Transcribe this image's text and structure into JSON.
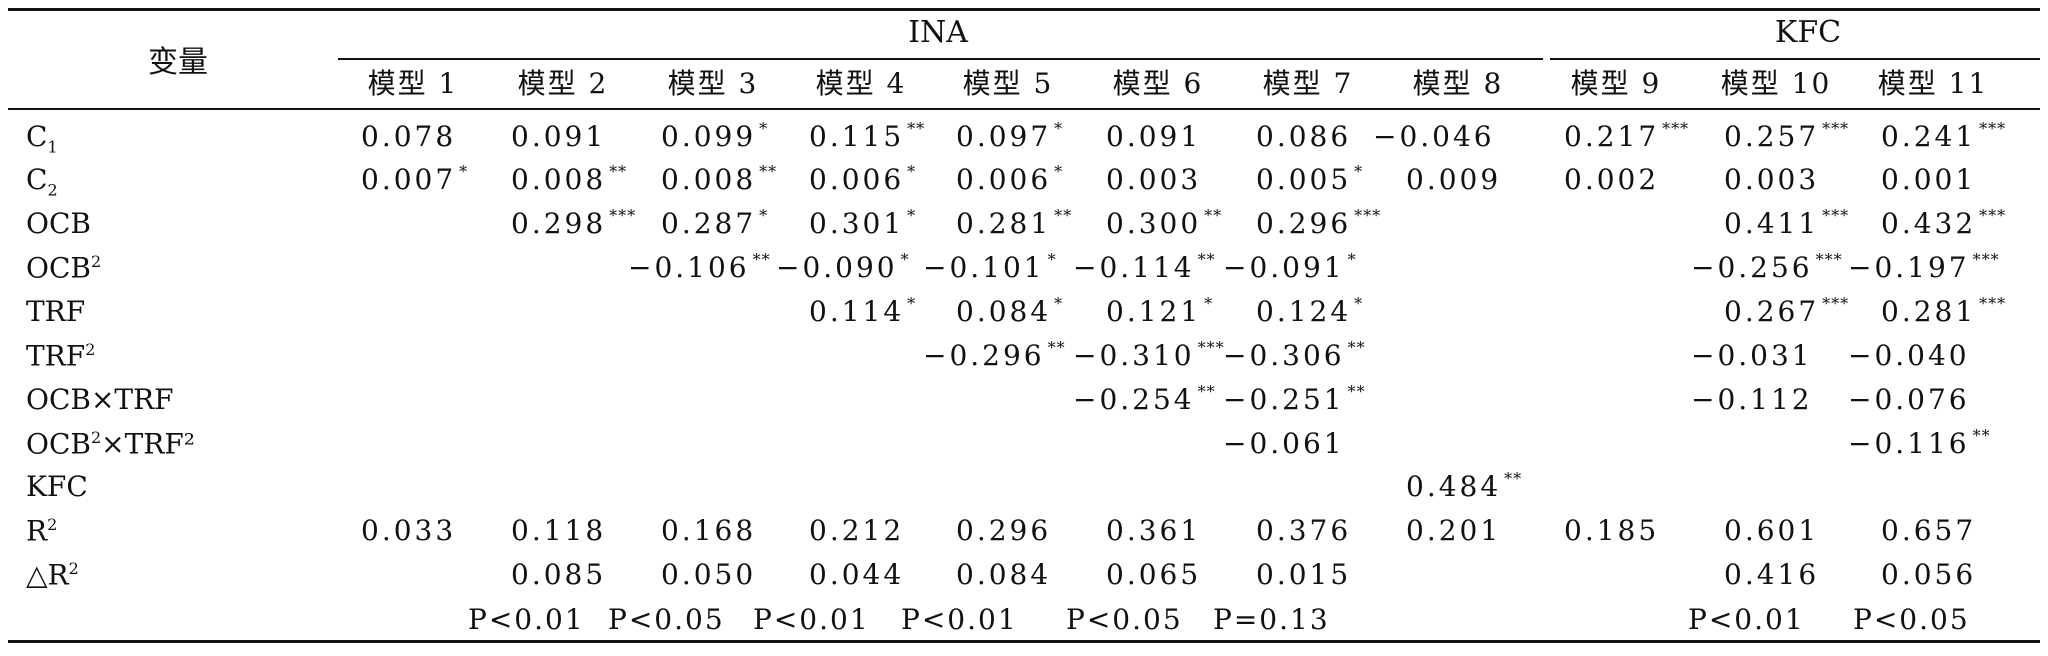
{
  "header": {
    "variable_label": "变量",
    "group_ina": "INA",
    "group_kfc": "KFC",
    "models": [
      "模型 1",
      "模型 2",
      "模型 3",
      "模型 4",
      "模型 5",
      "模型 6",
      "模型 7",
      "模型 8",
      "模型 9",
      "模型 10",
      "模型 11"
    ]
  },
  "rows": [
    {
      "label_base": "C",
      "label_sub": "1",
      "label_sup": "",
      "label_rest": "",
      "cells": [
        [
          "0.078",
          ""
        ],
        [
          "0.091",
          ""
        ],
        [
          "0.099",
          "*"
        ],
        [
          "0.115",
          "**"
        ],
        [
          "0.097",
          "*"
        ],
        [
          "0.091",
          ""
        ],
        [
          "0.086",
          ""
        ],
        [
          "−0.046",
          ""
        ],
        [
          "0.217",
          "***"
        ],
        [
          "0.257",
          "***"
        ],
        [
          "0.241",
          "***"
        ]
      ]
    },
    {
      "label_base": "C",
      "label_sub": "2",
      "label_sup": "",
      "label_rest": "",
      "cells": [
        [
          "0.007",
          "*"
        ],
        [
          "0.008",
          "**"
        ],
        [
          "0.008",
          "**"
        ],
        [
          "0.006",
          "*"
        ],
        [
          "0.006",
          "*"
        ],
        [
          "0.003",
          ""
        ],
        [
          "0.005",
          "*"
        ],
        [
          "0.009",
          ""
        ],
        [
          "0.002",
          ""
        ],
        [
          "0.003",
          ""
        ],
        [
          "0.001",
          ""
        ]
      ]
    },
    {
      "label_base": "OCB",
      "label_sub": "",
      "label_sup": "",
      "label_rest": "",
      "cells": [
        [
          "",
          ""
        ],
        [
          "0.298",
          "***"
        ],
        [
          "0.287",
          "*"
        ],
        [
          "0.301",
          "*"
        ],
        [
          "0.281",
          "**"
        ],
        [
          "0.300",
          "**"
        ],
        [
          "0.296",
          "***"
        ],
        [
          "",
          ""
        ],
        [
          "",
          ""
        ],
        [
          "0.411",
          "***"
        ],
        [
          "0.432",
          "***"
        ]
      ]
    },
    {
      "label_base": "OCB",
      "label_sub": "",
      "label_sup": "2",
      "label_rest": "",
      "cells": [
        [
          "",
          ""
        ],
        [
          "",
          ""
        ],
        [
          "−0.106",
          "**"
        ],
        [
          "−0.090",
          "*"
        ],
        [
          "−0.101",
          "*"
        ],
        [
          "−0.114",
          "**"
        ],
        [
          "−0.091",
          "*"
        ],
        [
          "",
          ""
        ],
        [
          "",
          ""
        ],
        [
          "−0.256",
          "***"
        ],
        [
          "−0.197",
          "***"
        ]
      ]
    },
    {
      "label_base": "TRF",
      "label_sub": "",
      "label_sup": "",
      "label_rest": "",
      "cells": [
        [
          "",
          ""
        ],
        [
          "",
          ""
        ],
        [
          "",
          ""
        ],
        [
          "0.114",
          "*"
        ],
        [
          "0.084",
          "*"
        ],
        [
          "0.121",
          "*"
        ],
        [
          "0.124",
          "*"
        ],
        [
          "",
          ""
        ],
        [
          "",
          ""
        ],
        [
          "0.267",
          "***"
        ],
        [
          "0.281",
          "***"
        ]
      ]
    },
    {
      "label_base": "TRF",
      "label_sub": "",
      "label_sup": "2",
      "label_rest": "",
      "cells": [
        [
          "",
          ""
        ],
        [
          "",
          ""
        ],
        [
          "",
          ""
        ],
        [
          "",
          ""
        ],
        [
          "−0.296",
          "**"
        ],
        [
          "−0.310",
          "***"
        ],
        [
          "−0.306",
          "**"
        ],
        [
          "",
          ""
        ],
        [
          "",
          ""
        ],
        [
          "−0.031",
          ""
        ],
        [
          "−0.040",
          ""
        ]
      ]
    },
    {
      "label_base": "OCB×TRF",
      "label_sub": "",
      "label_sup": "",
      "label_rest": "",
      "cells": [
        [
          "",
          ""
        ],
        [
          "",
          ""
        ],
        [
          "",
          ""
        ],
        [
          "",
          ""
        ],
        [
          "",
          ""
        ],
        [
          "−0.254",
          "**"
        ],
        [
          "−0.251",
          "**"
        ],
        [
          "",
          ""
        ],
        [
          "",
          ""
        ],
        [
          "−0.112",
          ""
        ],
        [
          "−0.076",
          ""
        ]
      ]
    },
    {
      "label_base": "OCB",
      "label_sub": "",
      "label_sup": "2",
      "label_rest": "×TRF²",
      "cells": [
        [
          "",
          ""
        ],
        [
          "",
          ""
        ],
        [
          "",
          ""
        ],
        [
          "",
          ""
        ],
        [
          "",
          ""
        ],
        [
          "",
          ""
        ],
        [
          "−0.061",
          ""
        ],
        [
          "",
          ""
        ],
        [
          "",
          ""
        ],
        [
          "",
          ""
        ],
        [
          "−0.116",
          "**"
        ]
      ]
    },
    {
      "label_base": "KFC",
      "label_sub": "",
      "label_sup": "",
      "label_rest": "",
      "cells": [
        [
          "",
          ""
        ],
        [
          "",
          ""
        ],
        [
          "",
          ""
        ],
        [
          "",
          ""
        ],
        [
          "",
          ""
        ],
        [
          "",
          ""
        ],
        [
          "",
          ""
        ],
        [
          "0.484",
          "**"
        ],
        [
          "",
          ""
        ],
        [
          "",
          ""
        ],
        [
          "",
          ""
        ]
      ]
    },
    {
      "label_base": "R",
      "label_sub": "",
      "label_sup": "2",
      "label_rest": "",
      "cells": [
        [
          "0.033",
          ""
        ],
        [
          "0.118",
          ""
        ],
        [
          "0.168",
          ""
        ],
        [
          "0.212",
          ""
        ],
        [
          "0.296",
          ""
        ],
        [
          "0.361",
          ""
        ],
        [
          "0.376",
          ""
        ],
        [
          "0.201",
          ""
        ],
        [
          "0.185",
          ""
        ],
        [
          "0.601",
          ""
        ],
        [
          "0.657",
          ""
        ]
      ]
    },
    {
      "label_base": "△R",
      "label_sub": "",
      "label_sup": "2",
      "label_rest": "",
      "cells": [
        [
          "",
          ""
        ],
        [
          "0.085",
          ""
        ],
        [
          "0.050",
          ""
        ],
        [
          "0.044",
          ""
        ],
        [
          "0.084",
          ""
        ],
        [
          "0.065",
          ""
        ],
        [
          "0.015",
          ""
        ],
        [
          "",
          ""
        ],
        [
          "",
          ""
        ],
        [
          "0.416",
          ""
        ],
        [
          "0.056",
          ""
        ]
      ]
    }
  ],
  "pvalues": [
    "P<0.01",
    "P<0.05",
    "P<0.01",
    "P<0.01",
    "P<0.05",
    "P=0.13",
    "P<0.01",
    "P<0.05"
  ]
}
